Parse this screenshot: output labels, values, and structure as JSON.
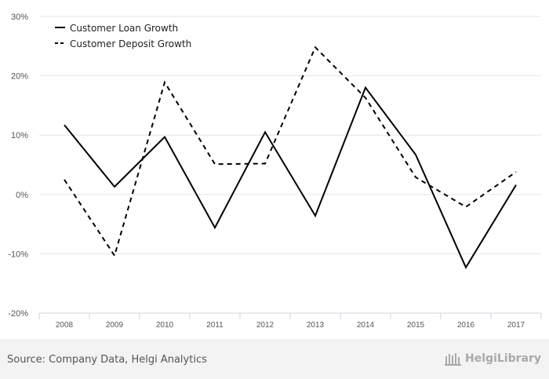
{
  "chart_data": {
    "type": "line",
    "categories": [
      "2008",
      "2009",
      "2010",
      "2011",
      "2012",
      "2013",
      "2014",
      "2015",
      "2016",
      "2017"
    ],
    "series": [
      {
        "name": "Customer Loan Growth",
        "style": "solid",
        "values": [
          11.7,
          1.3,
          9.7,
          -5.6,
          10.5,
          -3.6,
          18.0,
          6.7,
          -12.3,
          1.6
        ]
      },
      {
        "name": "Customer Deposit Growth",
        "style": "dashed",
        "values": [
          2.5,
          -10.3,
          18.9,
          5.1,
          5.2,
          24.8,
          16.3,
          2.9,
          -2.1,
          3.8
        ]
      }
    ],
    "ylim": [
      -20,
      30
    ],
    "yticks": [
      30,
      20,
      10,
      0,
      -10,
      -20
    ],
    "ytick_labels": [
      "30%",
      "20%",
      "10%",
      "0%",
      "-10%",
      "-20%"
    ],
    "grid": true,
    "legend": "top-left",
    "line_color": "#000000"
  },
  "footer": {
    "source": "Source: Company Data, Helgi Analytics",
    "brand": "HelgiLibrary",
    "brand_icon": "library-logo-icon"
  }
}
